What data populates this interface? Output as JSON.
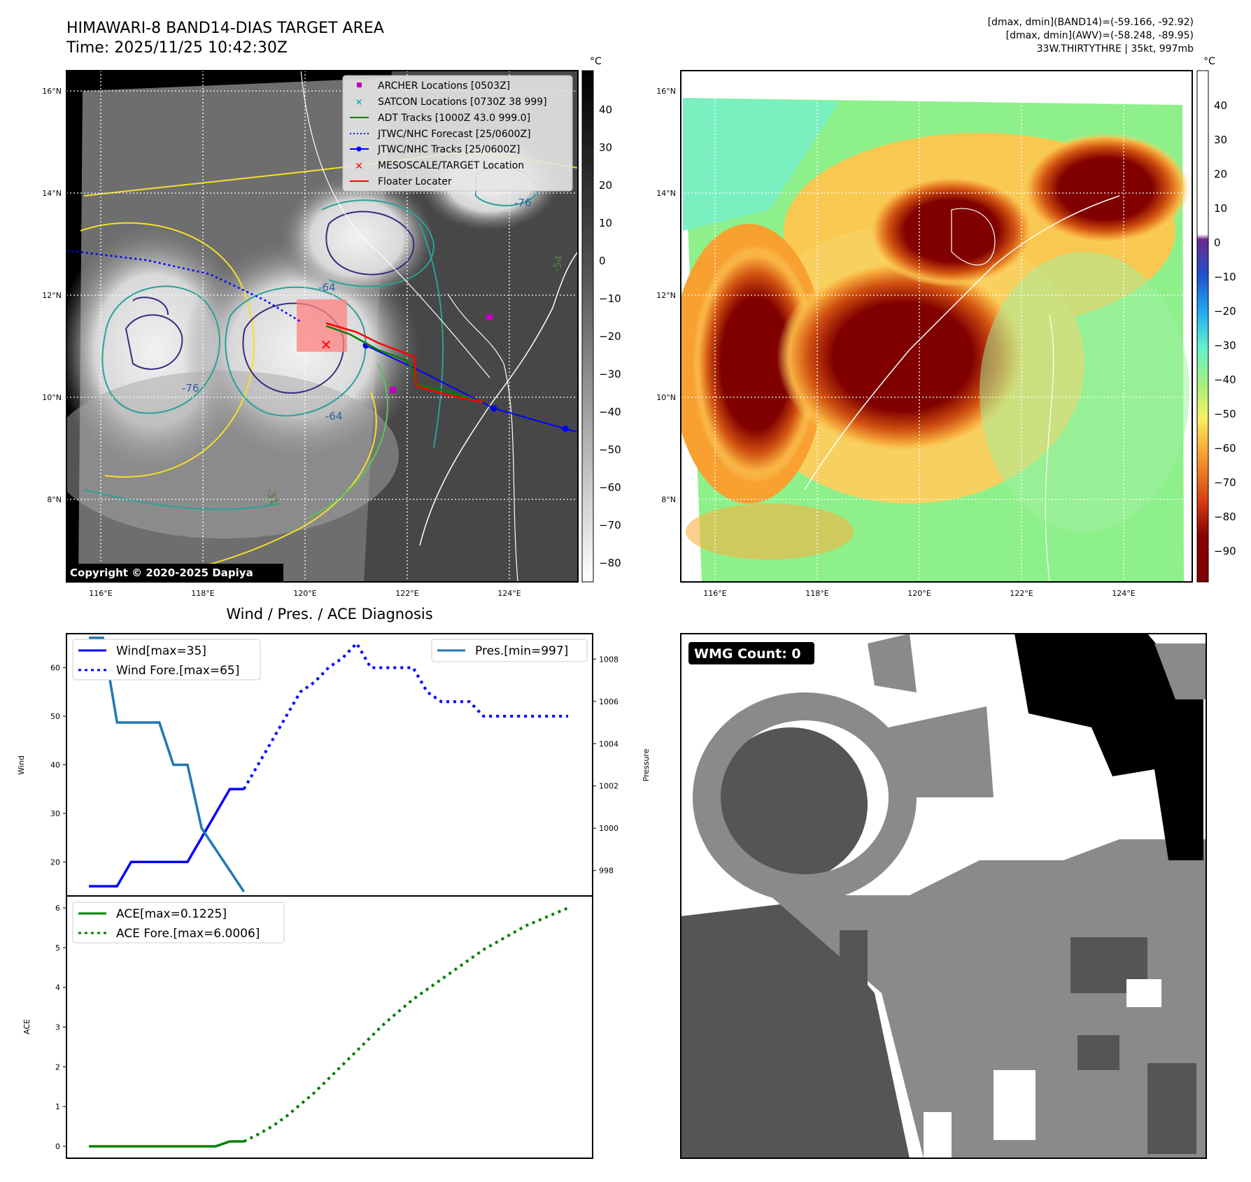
{
  "header": {
    "title_line1": "HIMAWARI-8 BAND14-DIAS TARGET AREA",
    "title_line2": "Time: 2025/11/25 10:42:30Z",
    "info_line1": "[dmax, dmin](BAND14)=(-59.166, -92.92)",
    "info_line2": "[dmax, dmin](AWV)=(-58.248, -89.95)",
    "info_line3": "33W.THIRTYTHRE | 35kt, 997mb"
  },
  "map_axes": {
    "lon_ticks": [
      "116°E",
      "118°E",
      "120°E",
      "122°E",
      "124°E"
    ],
    "lat_ticks": [
      "16°N",
      "14°N",
      "12°N",
      "10°N",
      "8°N"
    ]
  },
  "colorbar_left": {
    "unit": "°C",
    "ticks": [
      "40",
      "30",
      "20",
      "10",
      "0",
      "−10",
      "−20",
      "−30",
      "−40",
      "−50",
      "−60",
      "−70",
      "−80"
    ]
  },
  "colorbar_right": {
    "unit": "°C",
    "ticks": [
      "40",
      "30",
      "20",
      "10",
      "0",
      "−10",
      "−20",
      "−30",
      "−40",
      "−50",
      "−60",
      "−70",
      "−80",
      "−90"
    ]
  },
  "map_legend": [
    {
      "label": "ARCHER Locations [0503Z]",
      "color": "#c000c0",
      "symbol": "square"
    },
    {
      "label": "SATCON Locations [0730Z 38 999]",
      "color": "#20b0b0",
      "symbol": "x"
    },
    {
      "label": "ADT Tracks [1000Z 43.0 999.0]",
      "color": "#008000",
      "symbol": "line"
    },
    {
      "label": "JTWC/NHC Forecast [25/0600Z]",
      "color": "#0000ff",
      "symbol": "dotted"
    },
    {
      "label": "JTWC/NHC Tracks [25/0600Z]",
      "color": "#0000ff",
      "symbol": "line-dot"
    },
    {
      "label": "MESOSCALE/TARGET Location",
      "color": "#ff0000",
      "symbol": "x"
    },
    {
      "label": "Floater Locater",
      "color": "#ff0000",
      "symbol": "line"
    }
  ],
  "copyright": "Copyright © 2020-2025 Dapiya",
  "contour_labels": [
    "-76",
    "-64",
    "-54",
    "-31",
    "-76",
    "-64"
  ],
  "wmg_label": "WMG Count: 0",
  "diagnosis": {
    "title": "Wind / Pres. / ACE Diagnosis",
    "wind_ylabel": "Wind",
    "pres_ylabel": "Pressure",
    "ace_ylabel": "ACE",
    "wind_legend": [
      "Wind[max=35]",
      "Wind Fore.[max=65]"
    ],
    "pres_legend": [
      "Pres.[min=997]"
    ],
    "ace_legend": [
      "ACE[max=0.1225]",
      "ACE Fore.[max=6.0006]"
    ]
  },
  "chart_data": [
    {
      "type": "line",
      "title": "Wind / Pres. / ACE Diagnosis",
      "ylabel": "Wind",
      "ylim": [
        13,
        67
      ],
      "yticks": [
        20,
        30,
        40,
        50,
        60
      ],
      "series": [
        {
          "name": "Wind[max=35]",
          "style": "solid",
          "color": "#0000ff",
          "x": [
            0,
            1,
            2,
            3,
            4,
            5,
            6,
            7,
            8,
            9,
            10,
            11
          ],
          "values": [
            15,
            15,
            15,
            20,
            20,
            20,
            20,
            20,
            25,
            30,
            35,
            35
          ]
        },
        {
          "name": "Wind Fore.[max=65]",
          "style": "dotted",
          "color": "#0000ff",
          "x": [
            11,
            12,
            13,
            14,
            15,
            16,
            17,
            18,
            19,
            20,
            21,
            22,
            23,
            24,
            25,
            26,
            27,
            28,
            29,
            30,
            31,
            32,
            33,
            34
          ],
          "values": [
            35,
            40,
            45,
            50,
            55,
            57,
            60,
            62,
            65,
            60,
            60,
            60,
            60,
            55,
            53,
            53,
            53,
            50,
            50,
            50,
            50,
            50,
            50,
            50
          ]
        }
      ]
    },
    {
      "type": "line",
      "ylabel": "Pressure",
      "ylim": [
        996.8,
        1009.2
      ],
      "yticks": [
        998,
        1000,
        1002,
        1004,
        1006,
        1008
      ],
      "series": [
        {
          "name": "Pres.[min=997]",
          "style": "solid",
          "color": "#1f77b4",
          "x": [
            0,
            1,
            2,
            3,
            4,
            5,
            6,
            7,
            8,
            9,
            10,
            11
          ],
          "values": [
            1009,
            1009,
            1005,
            1005,
            1005,
            1005,
            1003,
            1003,
            1000,
            999,
            998,
            997
          ]
        }
      ]
    },
    {
      "type": "line",
      "ylabel": "ACE",
      "ylim": [
        -0.3,
        6.3
      ],
      "yticks": [
        0,
        1,
        2,
        3,
        4,
        5,
        6
      ],
      "series": [
        {
          "name": "ACE[max=0.1225]",
          "style": "solid",
          "color": "#008000",
          "x": [
            0,
            1,
            2,
            3,
            4,
            5,
            6,
            7,
            8,
            9,
            10,
            11
          ],
          "values": [
            0,
            0,
            0,
            0,
            0,
            0,
            0,
            0,
            0,
            0,
            0.1225,
            0.1225
          ]
        },
        {
          "name": "ACE Fore.[max=6.0006]",
          "style": "dotted",
          "color": "#008000",
          "x": [
            11,
            12,
            13,
            14,
            15,
            16,
            17,
            18,
            19,
            20,
            21,
            22,
            23,
            24,
            25,
            26,
            27,
            28,
            29,
            30,
            31,
            32,
            33,
            34
          ],
          "values": [
            0.1225,
            0.3,
            0.5,
            0.75,
            1.05,
            1.35,
            1.7,
            2.05,
            2.4,
            2.75,
            3.1,
            3.4,
            3.7,
            3.95,
            4.2,
            4.45,
            4.7,
            4.95,
            5.15,
            5.35,
            5.55,
            5.7,
            5.85,
            6.0006
          ]
        }
      ]
    }
  ]
}
